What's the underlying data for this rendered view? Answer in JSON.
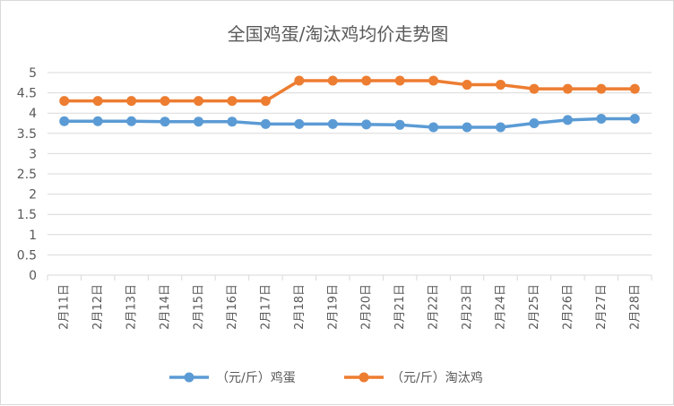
{
  "chart_data": {
    "type": "line",
    "title": "全国鸡蛋/淘汰鸡均价走势图",
    "categories": [
      "2月11日",
      "2月12日",
      "2月13日",
      "2月14日",
      "2月15日",
      "2月16日",
      "2月17日",
      "2月18日",
      "2月19日",
      "2月20日",
      "2月21日",
      "2月22日",
      "2月23日",
      "2月24日",
      "2月25日",
      "2月26日",
      "2月27日",
      "2月28日"
    ],
    "yticks": [
      "0",
      "0.5",
      "1",
      "1.5",
      "2",
      "2.5",
      "3",
      "3.5",
      "4",
      "4.5",
      "5"
    ],
    "ylim": [
      0,
      5
    ],
    "grid": true,
    "legend_position": "bottom",
    "series": [
      {
        "name": "（元/斤）鸡蛋",
        "color": "#5b9bd5",
        "values": [
          3.8,
          3.8,
          3.8,
          3.79,
          3.79,
          3.79,
          3.73,
          3.73,
          3.73,
          3.72,
          3.71,
          3.65,
          3.65,
          3.65,
          3.75,
          3.83,
          3.86,
          3.86
        ]
      },
      {
        "name": "（元/斤）淘汰鸡",
        "color": "#ed7d31",
        "values": [
          4.3,
          4.3,
          4.3,
          4.3,
          4.3,
          4.3,
          4.3,
          4.8,
          4.8,
          4.8,
          4.8,
          4.8,
          4.7,
          4.7,
          4.6,
          4.6,
          4.6,
          4.6
        ]
      }
    ]
  }
}
